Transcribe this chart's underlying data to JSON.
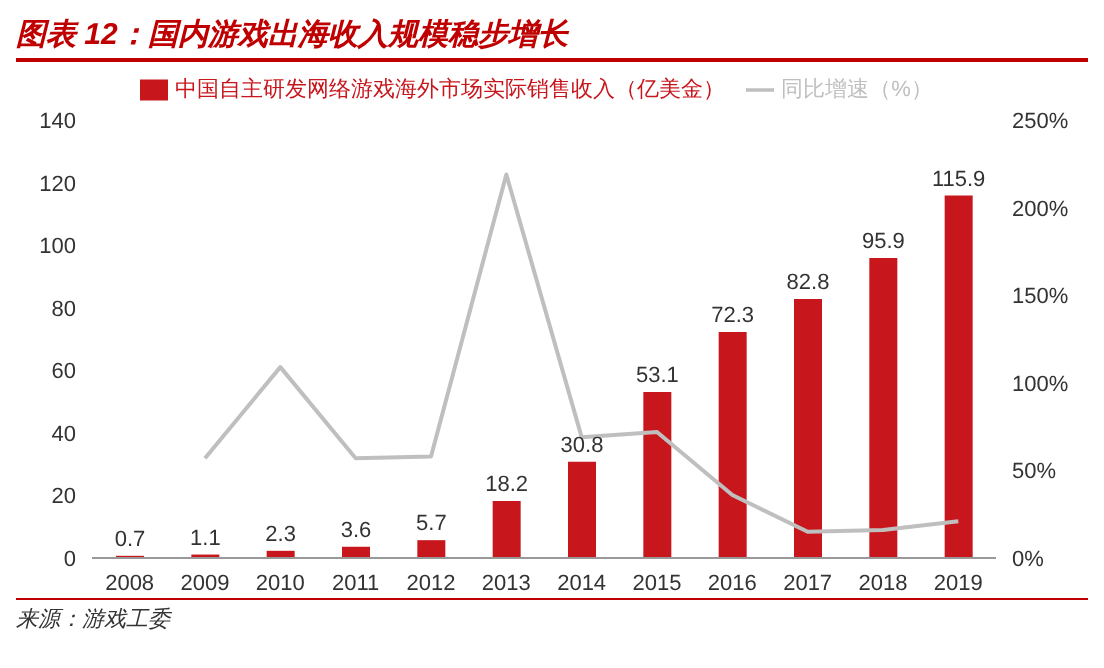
{
  "chart_data": {
    "type": "bar",
    "title": "图表 12：国内游戏出海收入规模稳步增长",
    "categories": [
      "2008",
      "2009",
      "2010",
      "2011",
      "2012",
      "2013",
      "2014",
      "2015",
      "2016",
      "2017",
      "2018",
      "2019"
    ],
    "series": [
      {
        "name": "中国自主研发网络游戏海外市场实际销售收入（亿美金）",
        "color": "#c8161d",
        "values": [
          0.7,
          1.1,
          2.3,
          3.6,
          5.7,
          18.2,
          30.8,
          53.1,
          72.3,
          82.8,
          95.9,
          115.9
        ],
        "value_labels": [
          "0.7",
          "1.1",
          "2.3",
          "3.6",
          "5.7",
          "18.2",
          "30.8",
          "53.1",
          "72.3",
          "82.8",
          "95.9",
          "115.9"
        ]
      },
      {
        "name": "同比增速（%）",
        "type": "line",
        "axis": "y2",
        "color": "#bfbfbf",
        "values": [
          null,
          57,
          109,
          57,
          58,
          219,
          69,
          72,
          36,
          15,
          16,
          21
        ]
      }
    ],
    "ylim": [
      0,
      140
    ],
    "yticks": [
      0,
      20,
      40,
      60,
      80,
      100,
      120,
      140
    ],
    "y2lim": [
      0,
      250
    ],
    "y2ticks": [
      {
        "value": 0,
        "label": "0%"
      },
      {
        "value": 50,
        "label": "50%"
      },
      {
        "value": 100,
        "label": "100%"
      },
      {
        "value": 150,
        "label": "150%"
      },
      {
        "value": 200,
        "label": "200%"
      },
      {
        "value": 250,
        "label": "250%"
      }
    ],
    "legend": "top",
    "grid": false,
    "marker": "none",
    "annotations": [
      "来源：游戏工委"
    ]
  }
}
